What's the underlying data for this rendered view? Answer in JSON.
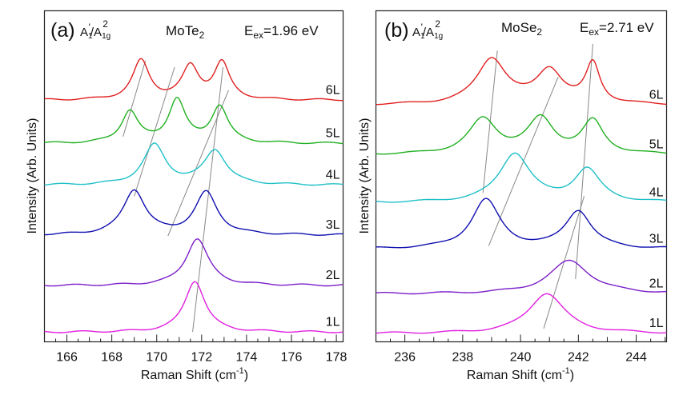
{
  "chart_data": [
    {
      "type": "line",
      "panel_label": "(a)",
      "mode_label": "A1'/A1g^2",
      "mode_label_parts": {
        "a": "A",
        "a_sub": "1",
        "a_sup": "'",
        "slash": "/A",
        "b_sub": "1g",
        "b_sup": "2"
      },
      "material": "MoTe",
      "material_sub": "2",
      "excitation_label": "E",
      "excitation_sub": "ex",
      "excitation_value": "=1.96 eV",
      "xlabel": "Raman Shift (cm",
      "xlabel_sup": "-1",
      "xlabel_end": ")",
      "ylabel": "Intensity (Arb. Units)",
      "xlim": [
        165,
        178.3
      ],
      "ylim": [
        0,
        100
      ],
      "xticks": [
        166,
        168,
        170,
        172,
        174,
        176,
        178
      ],
      "xminor_step": 0.5,
      "series": [
        {
          "name": "1L",
          "color": "#e020e0",
          "baseline": 2.9,
          "peaks": [
            {
              "x": 171.7,
              "h": 15.5,
              "w": 0.55
            }
          ]
        },
        {
          "name": "2L",
          "color": "#7a1ec8",
          "baseline": 17.0,
          "peaks": [
            {
              "x": 171.8,
              "h": 14.2,
              "w": 0.6
            }
          ]
        },
        {
          "name": "3L",
          "color": "#1010b0",
          "baseline": 32.2,
          "peaks": [
            {
              "x": 169.0,
              "h": 13.5,
              "w": 0.6
            },
            {
              "x": 172.2,
              "h": 12.8,
              "w": 0.6
            }
          ]
        },
        {
          "name": "4L",
          "color": "#20c0c8",
          "baseline": 47.3,
          "peaks": [
            {
              "x": 169.9,
              "h": 12.0,
              "w": 0.6
            },
            {
              "x": 172.6,
              "h": 10.4,
              "w": 0.6
            }
          ]
        },
        {
          "name": "5L",
          "color": "#20b020",
          "baseline": 59.9,
          "peaks": [
            {
              "x": 168.8,
              "h": 9.6,
              "w": 0.45
            },
            {
              "x": 170.9,
              "h": 13.0,
              "w": 0.45
            },
            {
              "x": 172.8,
              "h": 11.0,
              "w": 0.45
            }
          ]
        },
        {
          "name": "6L",
          "color": "#e02020",
          "baseline": 73.0,
          "peaks": [
            {
              "x": 169.3,
              "h": 11.8,
              "w": 0.45
            },
            {
              "x": 171.5,
              "h": 9.8,
              "w": 0.45
            },
            {
              "x": 172.9,
              "h": 11.0,
              "w": 0.42
            }
          ]
        }
      ],
      "guide_lines": [
        {
          "from": [
            169.0,
            44.0
          ],
          "to": [
            170.8,
            83.0
          ]
        },
        {
          "from": [
            170.5,
            32.0
          ],
          "to": [
            173.2,
            76.0
          ]
        },
        {
          "from": [
            171.6,
            3.0
          ],
          "to": [
            172.95,
            83.0
          ]
        },
        {
          "from": [
            168.5,
            62.0
          ],
          "to": [
            169.5,
            85.0
          ]
        }
      ],
      "legend": "inline-right"
    },
    {
      "type": "line",
      "panel_label": "(b)",
      "mode_label": "A1'/A1g^2",
      "mode_label_parts": {
        "a": "A",
        "a_sub": "1",
        "a_sup": "'",
        "slash": "/A",
        "b_sub": "1g",
        "b_sup": "2"
      },
      "material": "MoSe",
      "material_sub": "2",
      "excitation_label": "E",
      "excitation_sub": "ex",
      "excitation_value": "=2.71 eV",
      "xlabel": "Raman Shift (cm",
      "xlabel_sup": "-1",
      "xlabel_end": ")",
      "ylabel": "Intensity (Arb. Units)",
      "xlim": [
        235,
        245.05
      ],
      "ylim": [
        0,
        100
      ],
      "xticks": [
        236,
        238,
        240,
        242,
        244
      ],
      "xminor_step": 0.5,
      "series": [
        {
          "name": "1L",
          "color": "#e020e0",
          "baseline": 2.5,
          "peaks": [
            {
              "x": 240.9,
              "h": 12.2,
              "w": 0.75
            }
          ]
        },
        {
          "name": "2L",
          "color": "#7a1ec8",
          "baseline": 14.5,
          "peaks": [
            {
              "x": 241.7,
              "h": 10.0,
              "w": 0.85
            }
          ]
        },
        {
          "name": "3L",
          "color": "#1010b0",
          "baseline": 28.0,
          "peaks": [
            {
              "x": 238.8,
              "h": 14.8,
              "w": 0.6
            },
            {
              "x": 242.0,
              "h": 11.4,
              "w": 0.55
            }
          ]
        },
        {
          "name": "4L",
          "color": "#20c0c8",
          "baseline": 42.0,
          "peaks": [
            {
              "x": 239.8,
              "h": 14.8,
              "w": 0.65
            },
            {
              "x": 242.3,
              "h": 9.8,
              "w": 0.55
            }
          ]
        },
        {
          "name": "5L",
          "color": "#20b020",
          "baseline": 56.5,
          "peaks": [
            {
              "x": 238.7,
              "h": 10.5,
              "w": 0.6
            },
            {
              "x": 240.7,
              "h": 10.5,
              "w": 0.55
            },
            {
              "x": 242.5,
              "h": 9.8,
              "w": 0.45
            }
          ]
        },
        {
          "name": "6L",
          "color": "#e02020",
          "baseline": 71.5,
          "peaks": [
            {
              "x": 239.0,
              "h": 13.8,
              "w": 0.62
            },
            {
              "x": 241.0,
              "h": 10.2,
              "w": 0.55
            },
            {
              "x": 242.5,
              "h": 12.0,
              "w": 0.3
            }
          ]
        }
      ],
      "guide_lines": [
        {
          "from": [
            238.7,
            45.0
          ],
          "to": [
            239.2,
            88.0
          ]
        },
        {
          "from": [
            240.8,
            4.0
          ],
          "to": [
            242.2,
            44.0
          ]
        },
        {
          "from": [
            238.9,
            29.0
          ],
          "to": [
            241.3,
            80.0
          ]
        },
        {
          "from": [
            241.9,
            19.0
          ],
          "to": [
            242.5,
            90.0
          ]
        }
      ],
      "legend": "inline-right"
    }
  ]
}
